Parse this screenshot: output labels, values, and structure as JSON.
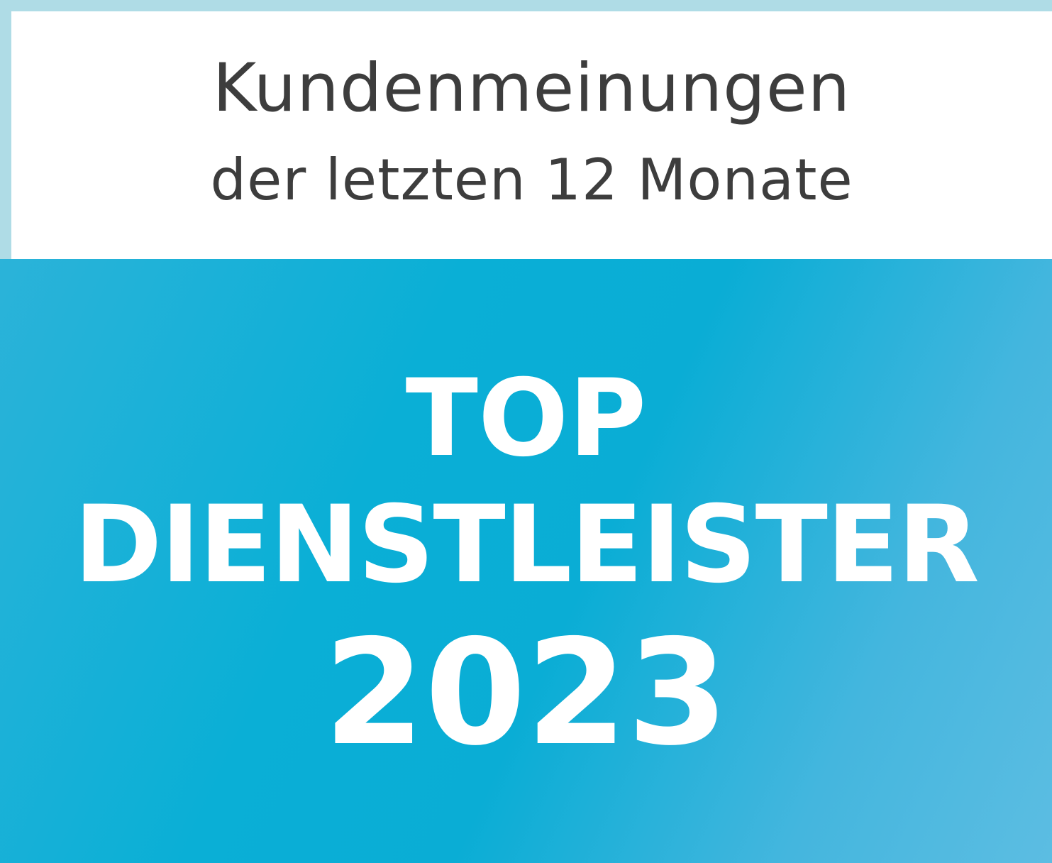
{
  "header": {
    "line1": "Kundenmeinungen",
    "line2": "der letzten 12 Monate"
  },
  "badge": {
    "line1": "TOP",
    "line2": "DIENSTLEISTER",
    "year": "2023"
  },
  "colors": {
    "border": "#afdce6",
    "panel": "#0aafd6",
    "header_text": "#3d3d3d"
  }
}
